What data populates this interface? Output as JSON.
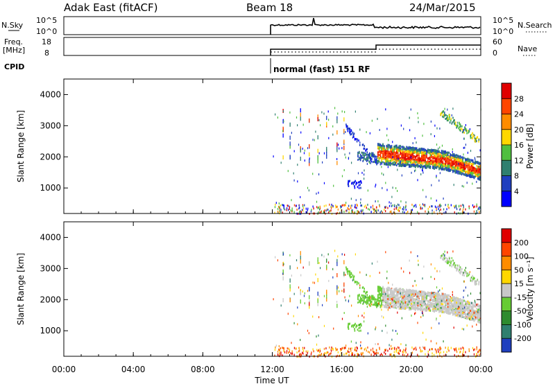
{
  "header": {
    "title": "Adak East (fitACF)",
    "beam": "Beam 18",
    "date": "24/Mar/2015"
  },
  "panels": {
    "nsky": {
      "left_label": "N.Sky",
      "right_label": "N.Search",
      "left_ticks": [
        "10^5",
        "10^0"
      ],
      "right_ticks": [
        "10^5",
        "10^0"
      ]
    },
    "freq": {
      "left_label_1": "Freq.",
      "left_label_2": "[MHz]",
      "right_label": "Nave",
      "left_ticks": [
        "18",
        "8"
      ],
      "right_ticks": [
        "60",
        "0"
      ]
    },
    "cpid": {
      "label": "CPID",
      "mode_text": "normal (fast) 151 RF"
    }
  },
  "chart_data": [
    {
      "type": "heatmap",
      "name": "power",
      "ylabel": "Slant Range [km]",
      "yticks": [
        1000,
        2000,
        3000,
        4000
      ],
      "colorbar_label": "Power [dB]",
      "colorbar_ticks": [
        "28",
        "24",
        "20",
        "16",
        "12",
        "8",
        "4"
      ],
      "colors": [
        "#0000ff",
        "#1f3fbf",
        "#2f7f6f",
        "#4fbf3f",
        "#ffd700",
        "#ff8c00",
        "#ff4500",
        "#e00000"
      ]
    },
    {
      "type": "heatmap",
      "name": "velocity",
      "ylabel": "Slant Range [km]",
      "yticks": [
        1000,
        2000,
        3000,
        4000
      ],
      "colorbar_label": "Velocity [m s⁻¹]",
      "colorbar_ticks": [
        "200",
        "100",
        "50",
        "15",
        "-15",
        "-50",
        "-100",
        "-200"
      ],
      "colors": [
        "#1f3fbf",
        "#2f7f6f",
        "#2e8b2e",
        "#66cc33",
        "#c8c8c8",
        "#ffd700",
        "#ff8c00",
        "#ff4500",
        "#e00000"
      ]
    }
  ],
  "x_axis": {
    "label": "Time UT",
    "ticks": [
      "00:00",
      "04:00",
      "08:00",
      "12:00",
      "16:00",
      "20:00",
      "00:00"
    ]
  }
}
